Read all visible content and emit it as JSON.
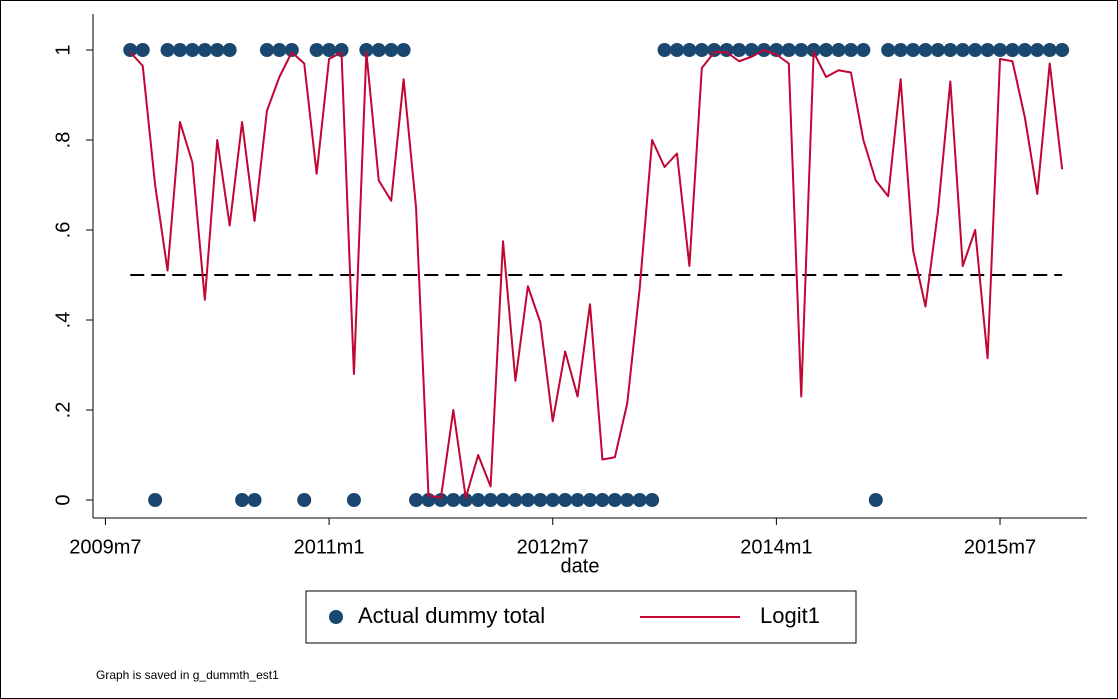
{
  "chart_data": {
    "type": "scatter-line",
    "x_label": "date",
    "note": "Graph is saved in g_dummth_est1",
    "x": [
      "2009m9",
      "2009m10",
      "2009m11",
      "2009m12",
      "2010m1",
      "2010m2",
      "2010m3",
      "2010m4",
      "2010m5",
      "2010m6",
      "2010m7",
      "2010m8",
      "2010m9",
      "2010m10",
      "2010m11",
      "2010m12",
      "2011m1",
      "2011m2",
      "2011m3",
      "2011m4",
      "2011m5",
      "2011m6",
      "2011m7",
      "2011m8",
      "2011m9",
      "2011m10",
      "2011m11",
      "2011m12",
      "2012m1",
      "2012m2",
      "2012m3",
      "2012m4",
      "2012m5",
      "2012m6",
      "2012m7",
      "2012m8",
      "2012m9",
      "2012m10",
      "2012m11",
      "2012m12",
      "2013m1",
      "2013m2",
      "2013m3",
      "2013m4",
      "2013m5",
      "2013m6",
      "2013m7",
      "2013m8",
      "2013m9",
      "2013m10",
      "2013m11",
      "2013m12",
      "2014m1",
      "2014m2",
      "2014m3",
      "2014m4",
      "2014m5",
      "2014m6",
      "2014m7",
      "2014m8",
      "2014m9",
      "2014m10",
      "2014m11",
      "2014m12",
      "2015m1",
      "2015m2",
      "2015m3",
      "2015m4",
      "2015m5",
      "2015m6",
      "2015m7",
      "2015m8",
      "2015m9",
      "2015m10",
      "2015m11",
      "2015m12"
    ],
    "series": [
      {
        "name": "Actual dummy total",
        "kind": "scatter",
        "color": "#1a476f",
        "values": [
          1,
          1,
          0,
          1,
          1,
          1,
          1,
          1,
          1,
          0,
          0,
          1,
          1,
          1,
          0,
          1,
          1,
          1,
          0,
          1,
          1,
          1,
          1,
          0,
          0,
          0,
          0,
          0,
          0,
          0,
          0,
          0,
          0,
          0,
          0,
          0,
          0,
          0,
          0,
          0,
          0,
          0,
          0,
          1,
          1,
          1,
          1,
          1,
          1,
          1,
          1,
          1,
          1,
          1,
          1,
          1,
          1,
          1,
          1,
          1,
          0,
          1,
          1,
          1,
          1,
          1,
          1,
          1,
          1,
          1,
          1,
          1,
          1,
          1,
          1,
          1
        ]
      },
      {
        "name": "Logit1",
        "kind": "line",
        "color": "#c10534",
        "values": [
          0.995,
          0.965,
          0.7,
          0.51,
          0.84,
          0.75,
          0.445,
          0.8,
          0.61,
          0.84,
          0.62,
          0.865,
          0.94,
          0.995,
          0.97,
          0.725,
          0.98,
          0.995,
          0.28,
          0.995,
          0.71,
          0.665,
          0.935,
          0.65,
          0.01,
          0.005,
          0.2,
          0.005,
          0.1,
          0.03,
          0.575,
          0.265,
          0.475,
          0.395,
          0.175,
          0.33,
          0.23,
          0.435,
          0.09,
          0.095,
          0.215,
          0.47,
          0.8,
          0.74,
          0.77,
          0.52,
          0.96,
          0.995,
          0.995,
          0.975,
          0.985,
          1.0,
          0.99,
          0.97,
          0.23,
          0.995,
          0.94,
          0.955,
          0.95,
          0.8,
          0.71,
          0.675,
          0.935,
          0.555,
          0.43,
          0.64,
          0.93,
          0.52,
          0.6,
          0.315,
          0.98,
          0.975,
          0.85,
          0.68,
          0.97,
          0.735
        ]
      }
    ],
    "reference_line": 0.5,
    "reference_color": "#000000",
    "xlim": [
      "2009m6",
      "2016m2"
    ],
    "xticks": [
      "2009m7",
      "2011m1",
      "2012m7",
      "2014m1",
      "2015m7"
    ],
    "ylim": [
      -0.04,
      1.08
    ],
    "yticks": [
      0,
      {
        "value": 0.2,
        "label": ".2"
      },
      {
        "value": 0.4,
        "label": ".4"
      },
      {
        "value": 0.6,
        "label": ".6"
      },
      {
        "value": 0.8,
        "label": ".8"
      },
      1
    ],
    "grid": false
  }
}
